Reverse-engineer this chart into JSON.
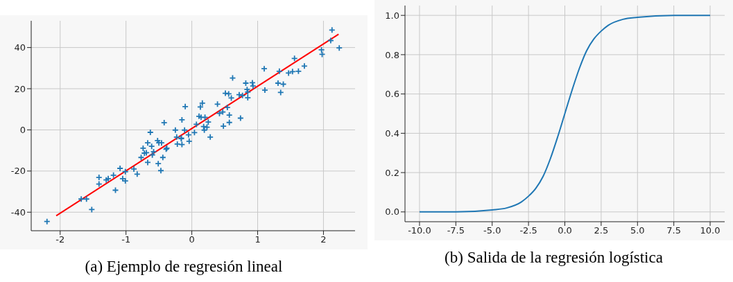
{
  "chart_data": [
    {
      "type": "scatter",
      "title": "(a) Ejemplo de regresión lineal",
      "grid": true,
      "xlim": [
        -2.44,
        2.48
      ],
      "xticks": [
        -2,
        -1,
        0,
        1,
        2
      ],
      "ylim": [
        -49,
        53
      ],
      "yticks": [
        -40,
        -20,
        0,
        20,
        40
      ],
      "series": [
        {
          "marker": "cross",
          "color": "#1f77b4",
          "x": [
            -2.2,
            -1.68,
            -1.6,
            -1.52,
            -1.41,
            -1.41,
            -1.3,
            -1.27,
            -1.19,
            -1.16,
            -1.09,
            -1.05,
            -1.01,
            -1.01,
            -0.88,
            -0.83,
            -0.77,
            -0.74,
            -0.72,
            -0.69,
            -0.67,
            -0.67,
            -0.63,
            -0.61,
            -0.6,
            -0.58,
            -0.52,
            -0.5,
            -0.51,
            -0.47,
            -0.46,
            -0.44,
            -0.42,
            -0.39,
            -0.38,
            -0.25,
            -0.23,
            -0.22,
            -0.16,
            -0.15,
            -0.15,
            -0.1,
            -0.11,
            -0.16,
            -0.05,
            -0.04,
            0.04,
            0.07,
            0.11,
            0.13,
            0.16,
            0.14,
            0.18,
            0.19,
            0.2,
            0.23,
            0.25,
            0.28,
            0.39,
            0.42,
            0.47,
            0.48,
            0.51,
            0.54,
            0.56,
            0.57,
            0.57,
            0.6,
            0.62,
            0.72,
            0.74,
            0.77,
            0.82,
            0.84,
            0.85,
            0.85,
            0.92,
            0.93,
            1.1,
            1.11,
            1.31,
            1.33,
            1.39,
            1.35,
            1.47,
            1.53,
            1.56,
            1.62,
            1.71,
            1.97,
            1.98,
            2.11,
            2.13,
            2.24
          ],
          "values": [
            -44.5,
            -33.6,
            -33.6,
            -38.7,
            -23.1,
            -26.3,
            -24.3,
            -23.7,
            -22,
            -29.3,
            -18.7,
            -23.7,
            -24.8,
            -20.3,
            -19,
            -21.5,
            -13.4,
            -8.9,
            -11.3,
            -11.1,
            -6.3,
            -15.8,
            -1.2,
            -8,
            -12.2,
            -10.6,
            -5.2,
            -6.3,
            -16.4,
            -19.8,
            -6.3,
            -13.4,
            3.5,
            -9.4,
            -8.9,
            -0.1,
            -3.5,
            -6.9,
            -4,
            4.9,
            -7.1,
            11.3,
            -0.1,
            -4.3,
            -2.4,
            -5.5,
            -1.3,
            2.7,
            6.6,
            11.1,
            13,
            6.1,
            1.6,
            -0.1,
            6.1,
            1.3,
            3.8,
            -3.5,
            12.5,
            8,
            8.7,
            1.8,
            17.8,
            10.9,
            17.5,
            7.2,
            3.6,
            15.5,
            25.2,
            17.1,
            5.7,
            16.7,
            22.7,
            19.6,
            15.6,
            18.4,
            22.9,
            21.3,
            29.7,
            19.3,
            22.7,
            28.5,
            22.2,
            18.2,
            27.6,
            28.3,
            34.7,
            28.5,
            31,
            38.9,
            36.7,
            43.4,
            48.5,
            39.8
          ]
        },
        {
          "type": "line",
          "color": "#ff0000",
          "x": [
            -2.06,
            2.23
          ],
          "values": [
            -41.7,
            46.5
          ]
        }
      ]
    },
    {
      "type": "line",
      "title": "(b) Salida de la regresión logística",
      "grid": true,
      "color": "#1f77b4",
      "xlim": [
        -11,
        11
      ],
      "xticks": [
        {
          "value": -10,
          "label": "-10.0"
        },
        {
          "value": -7.5,
          "label": "-7.5"
        },
        {
          "value": -5,
          "label": "-5.0"
        },
        {
          "value": -2.5,
          "label": "-2.5"
        },
        {
          "value": 0,
          "label": "0.0"
        },
        {
          "value": 2.5,
          "label": "2.5"
        },
        {
          "value": 5,
          "label": "5.0"
        },
        {
          "value": 7.5,
          "label": "7.5"
        },
        {
          "value": 10,
          "label": "10.0"
        }
      ],
      "ylim": [
        -0.05,
        1.05
      ],
      "yticks": [
        {
          "value": 0,
          "label": "0.0"
        },
        {
          "value": 0.2,
          "label": "0.2"
        },
        {
          "value": 0.4,
          "label": "0.4"
        },
        {
          "value": 0.6,
          "label": "0.6"
        },
        {
          "value": 0.8,
          "label": "0.8"
        },
        {
          "value": 1,
          "label": "1.0"
        }
      ],
      "x": [
        -10,
        -7.5,
        -5,
        -4,
        -3,
        -2.5,
        -2,
        -1.5,
        -1,
        -0.5,
        0,
        0.5,
        1,
        1.5,
        2,
        2.5,
        3,
        4,
        5,
        7.5,
        10
      ],
      "values": [
        0,
        0,
        0.01,
        0.02,
        0.05,
        0.08,
        0.12,
        0.18,
        0.27,
        0.38,
        0.5,
        0.62,
        0.73,
        0.82,
        0.88,
        0.92,
        0.95,
        0.98,
        0.99,
        1,
        1
      ]
    }
  ]
}
